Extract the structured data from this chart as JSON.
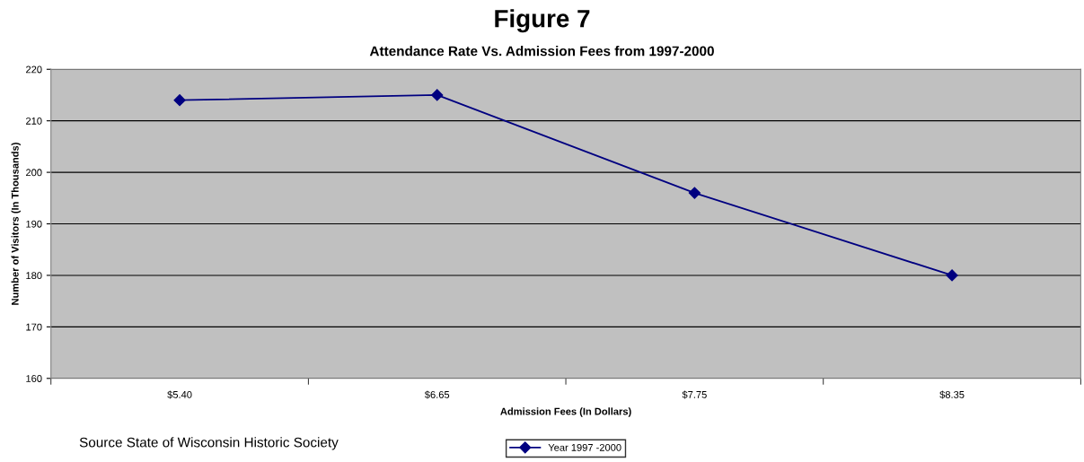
{
  "chart_data": {
    "type": "line",
    "title": "Figure 7",
    "subtitle": "Attendance Rate Vs. Admission Fees from 1997-2000",
    "xlabel": "Admission Fees (In Dollars)",
    "ylabel": "Number of Visitors (In Thousands)",
    "categories": [
      "$5.40",
      "$6.65",
      "$7.75",
      "$8.35"
    ],
    "series": [
      {
        "name": "Year 1997 -2000",
        "color": "#000080",
        "values": [
          214,
          215,
          196,
          180
        ]
      }
    ],
    "ylim": [
      160,
      220
    ],
    "yticks": [
      160,
      170,
      180,
      190,
      200,
      210,
      220
    ],
    "grid": "y",
    "legend": "bottom",
    "marker": "diamond",
    "line_style": "solid",
    "annotations": [
      "Source State of Wisconsin Historic Society"
    ]
  }
}
